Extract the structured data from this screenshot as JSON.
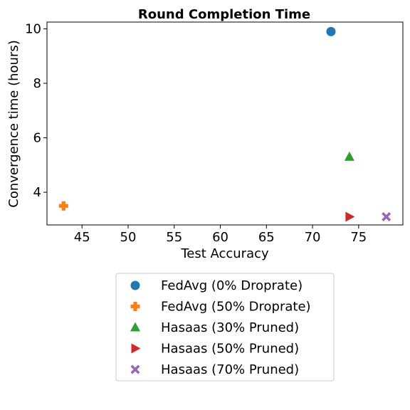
{
  "chart_data": {
    "type": "scatter",
    "title": "Round Completion Time",
    "xlabel": "Test Accuracy",
    "ylabel": "Convergence time (hours)",
    "xlim": [
      41.2,
      79.8
    ],
    "ylim": [
      2.8,
      10.25
    ],
    "xticks": [
      45,
      50,
      55,
      60,
      65,
      70,
      75
    ],
    "yticks": [
      4,
      6,
      8,
      10
    ],
    "grid": false,
    "legend_position": "below plot",
    "series": [
      {
        "name": "FedAvg (0% Droprate)",
        "color": "#1f77b4",
        "marker": "circle",
        "x": [
          72
        ],
        "y": [
          9.9
        ]
      },
      {
        "name": "FedAvg (50% Droprate)",
        "color": "#ff7f0e",
        "marker": "plus",
        "x": [
          43
        ],
        "y": [
          3.5
        ]
      },
      {
        "name": "Hasaas (30% Pruned)",
        "color": "#2ca02c",
        "marker": "triangle-up",
        "x": [
          74
        ],
        "y": [
          5.3
        ]
      },
      {
        "name": "Hasaas (50% Pruned)",
        "color": "#d62728",
        "marker": "triangle-right",
        "x": [
          74
        ],
        "y": [
          3.1
        ]
      },
      {
        "name": "Hasaas (70% Pruned)",
        "color": "#9467bd",
        "marker": "x-filled",
        "x": [
          78
        ],
        "y": [
          3.1
        ]
      }
    ]
  }
}
